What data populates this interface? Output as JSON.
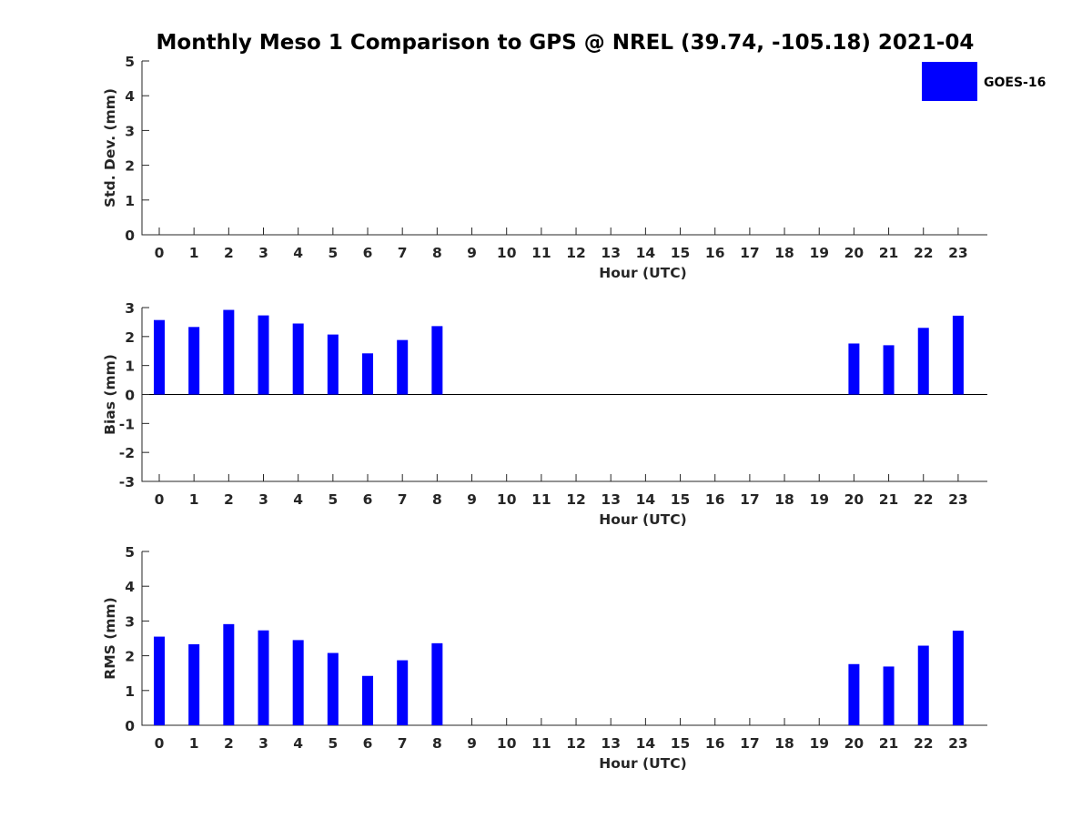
{
  "figure": {
    "title": "Monthly Meso 1 Comparison to GPS @ NREL (39.74, -105.18) 2021-04"
  },
  "legend": {
    "label": "GOES-16",
    "color": "#0000ff",
    "placement": "top-right"
  },
  "chart_data": [
    {
      "type": "bar",
      "xlabel": "Hour (UTC)",
      "ylabel": "Std. Dev. (mm)",
      "ylim": [
        0,
        5
      ],
      "yticks": [
        "0",
        "1",
        "2",
        "3",
        "4",
        "5"
      ],
      "categories": [
        "0",
        "1",
        "2",
        "3",
        "4",
        "5",
        "6",
        "7",
        "8",
        "9",
        "10",
        "11",
        "12",
        "13",
        "14",
        "15",
        "16",
        "17",
        "18",
        "19",
        "20",
        "21",
        "22",
        "23"
      ],
      "series": [
        {
          "name": "GOES-16",
          "color": "#0000ff",
          "values": [
            null,
            null,
            null,
            null,
            null,
            null,
            null,
            null,
            null,
            null,
            null,
            null,
            null,
            null,
            null,
            null,
            null,
            null,
            null,
            null,
            null,
            null,
            null,
            null
          ]
        }
      ],
      "zero_line": false
    },
    {
      "type": "bar",
      "xlabel": "Hour (UTC)",
      "ylabel": "Bias (mm)",
      "ylim": [
        -3,
        3
      ],
      "yticks": [
        "-3",
        "-2",
        "-1",
        "0",
        "1",
        "2",
        "3"
      ],
      "categories": [
        "0",
        "1",
        "2",
        "3",
        "4",
        "5",
        "6",
        "7",
        "8",
        "9",
        "10",
        "11",
        "12",
        "13",
        "14",
        "15",
        "16",
        "17",
        "18",
        "19",
        "20",
        "21",
        "22",
        "23"
      ],
      "series": [
        {
          "name": "GOES-16",
          "color": "#0000ff",
          "values": [
            2.57,
            2.33,
            2.92,
            2.73,
            2.45,
            2.07,
            1.42,
            1.88,
            2.36,
            null,
            null,
            null,
            null,
            null,
            null,
            null,
            null,
            null,
            null,
            null,
            1.76,
            1.7,
            2.3,
            2.72
          ]
        }
      ],
      "zero_line": true
    },
    {
      "type": "bar",
      "xlabel": "Hour (UTC)",
      "ylabel": "RMS (mm)",
      "ylim": [
        0,
        5
      ],
      "yticks": [
        "0",
        "1",
        "2",
        "3",
        "4",
        "5"
      ],
      "categories": [
        "0",
        "1",
        "2",
        "3",
        "4",
        "5",
        "6",
        "7",
        "8",
        "9",
        "10",
        "11",
        "12",
        "13",
        "14",
        "15",
        "16",
        "17",
        "18",
        "19",
        "20",
        "21",
        "22",
        "23"
      ],
      "series": [
        {
          "name": "GOES-16",
          "color": "#0000ff",
          "values": [
            2.55,
            2.33,
            2.91,
            2.73,
            2.45,
            2.08,
            1.42,
            1.87,
            2.36,
            null,
            null,
            null,
            null,
            null,
            null,
            null,
            null,
            null,
            null,
            null,
            1.76,
            1.69,
            2.29,
            2.72
          ]
        }
      ],
      "zero_line": false
    }
  ]
}
